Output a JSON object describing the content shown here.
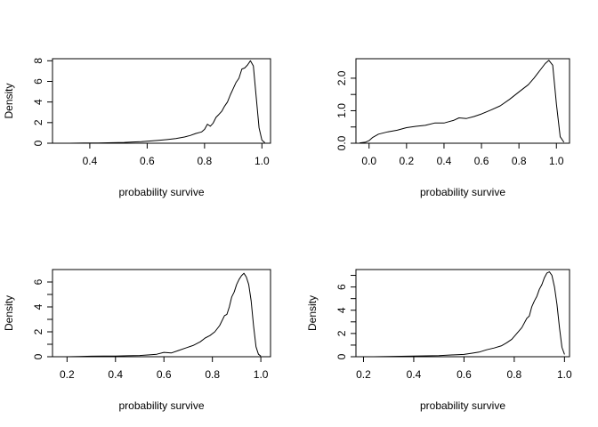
{
  "chart_data": [
    {
      "type": "line",
      "title": "",
      "xlabel": "probability survive",
      "ylabel": "Density",
      "xlim": [
        0.27,
        1.03
      ],
      "ylim": [
        0,
        8.2
      ],
      "xticks": [
        0.4,
        0.6,
        0.8,
        1.0
      ],
      "xtick_labels": [
        "0.4",
        "0.6",
        "0.8",
        "1.0"
      ],
      "yticks": [
        0,
        2,
        4,
        6,
        8
      ],
      "ytick_labels": [
        "0",
        "2",
        "4",
        "6",
        "8"
      ],
      "grid": false,
      "series": [
        {
          "x": [
            0.28,
            0.33,
            0.38,
            0.43,
            0.48,
            0.52,
            0.55,
            0.58,
            0.61,
            0.64,
            0.67,
            0.7,
            0.73,
            0.75,
            0.77,
            0.79,
            0.8,
            0.81,
            0.82,
            0.83,
            0.84,
            0.85,
            0.86,
            0.87,
            0.88,
            0.89,
            0.9,
            0.91,
            0.92,
            0.93,
            0.94,
            0.95,
            0.96,
            0.97,
            0.98,
            0.99,
            1.0,
            1.01
          ],
          "y": [
            0,
            0,
            0.02,
            0.03,
            0.05,
            0.08,
            0.12,
            0.15,
            0.22,
            0.28,
            0.35,
            0.45,
            0.6,
            0.75,
            0.95,
            1.1,
            1.35,
            1.85,
            1.65,
            1.95,
            2.5,
            2.8,
            3.1,
            3.6,
            4.0,
            4.7,
            5.3,
            5.9,
            6.3,
            7.2,
            7.3,
            7.6,
            8.0,
            7.5,
            4.5,
            1.5,
            0.3,
            0.05
          ]
        }
      ]
    },
    {
      "type": "line",
      "title": "",
      "xlabel": "probability survive",
      "ylabel": "",
      "xlim": [
        -0.07,
        1.07
      ],
      "ylim": [
        0,
        2.6
      ],
      "xticks": [
        0.0,
        0.2,
        0.4,
        0.6,
        0.8,
        1.0
      ],
      "xtick_labels": [
        "0.0",
        "0.2",
        "0.4",
        "0.6",
        "0.8",
        "1.0"
      ],
      "yticks": [
        0.0,
        0.5,
        1.0,
        1.5,
        2.0
      ],
      "ytick_labels": [
        "0.0",
        "",
        "1.0",
        "",
        "2.0"
      ],
      "grid": false,
      "series": [
        {
          "x": [
            -0.05,
            -0.02,
            0.0,
            0.02,
            0.05,
            0.1,
            0.15,
            0.2,
            0.25,
            0.3,
            0.35,
            0.4,
            0.45,
            0.48,
            0.52,
            0.56,
            0.6,
            0.65,
            0.7,
            0.75,
            0.8,
            0.85,
            0.88,
            0.9,
            0.92,
            0.94,
            0.96,
            0.98,
            1.0,
            1.02,
            1.04
          ],
          "y": [
            0.01,
            0.03,
            0.08,
            0.18,
            0.28,
            0.35,
            0.4,
            0.48,
            0.52,
            0.55,
            0.62,
            0.62,
            0.7,
            0.78,
            0.76,
            0.82,
            0.9,
            1.02,
            1.15,
            1.35,
            1.58,
            1.8,
            2.0,
            2.15,
            2.3,
            2.45,
            2.55,
            2.4,
            1.2,
            0.2,
            0.03
          ]
        }
      ]
    },
    {
      "type": "line",
      "title": "",
      "xlabel": "probability survive",
      "ylabel": "Density",
      "xlim": [
        0.14,
        1.04
      ],
      "ylim": [
        0,
        7
      ],
      "xticks": [
        0.2,
        0.4,
        0.6,
        0.8,
        1.0
      ],
      "xtick_labels": [
        "0.2",
        "0.4",
        "0.6",
        "0.8",
        "1.0"
      ],
      "yticks": [
        0,
        1,
        2,
        3,
        4,
        5,
        6
      ],
      "ytick_labels": [
        "0",
        "",
        "2",
        "",
        "4",
        "",
        "6"
      ],
      "grid": false,
      "series": [
        {
          "x": [
            0.15,
            0.2,
            0.25,
            0.3,
            0.35,
            0.4,
            0.45,
            0.5,
            0.54,
            0.57,
            0.6,
            0.63,
            0.66,
            0.69,
            0.72,
            0.75,
            0.77,
            0.79,
            0.81,
            0.83,
            0.85,
            0.86,
            0.87,
            0.88,
            0.89,
            0.9,
            0.91,
            0.92,
            0.93,
            0.94,
            0.95,
            0.96,
            0.97,
            0.98,
            0.99,
            1.0
          ],
          "y": [
            0,
            0,
            0.02,
            0.04,
            0.05,
            0.06,
            0.08,
            0.1,
            0.15,
            0.2,
            0.35,
            0.3,
            0.5,
            0.7,
            0.9,
            1.2,
            1.5,
            1.7,
            2.0,
            2.5,
            3.3,
            3.4,
            4.0,
            4.8,
            5.2,
            5.8,
            6.2,
            6.5,
            6.7,
            6.4,
            5.8,
            4.5,
            2.5,
            0.8,
            0.2,
            0.05
          ]
        }
      ]
    },
    {
      "type": "line",
      "title": "",
      "xlabel": "probability survive",
      "ylabel": "Density",
      "xlim": [
        0.17,
        1.02
      ],
      "ylim": [
        0,
        7.5
      ],
      "xticks": [
        0.2,
        0.4,
        0.6,
        0.8,
        1.0
      ],
      "xtick_labels": [
        "0.2",
        "0.4",
        "0.6",
        "0.8",
        "1.0"
      ],
      "yticks": [
        0,
        1,
        2,
        3,
        4,
        5,
        6,
        7
      ],
      "ytick_labels": [
        "0",
        "",
        "2",
        "",
        "4",
        "",
        "6",
        ""
      ],
      "grid": false,
      "series": [
        {
          "x": [
            0.19,
            0.24,
            0.3,
            0.35,
            0.4,
            0.45,
            0.5,
            0.55,
            0.6,
            0.63,
            0.66,
            0.69,
            0.72,
            0.75,
            0.77,
            0.79,
            0.81,
            0.83,
            0.85,
            0.86,
            0.87,
            0.88,
            0.89,
            0.9,
            0.91,
            0.92,
            0.93,
            0.94,
            0.95,
            0.96,
            0.97,
            0.98,
            0.99,
            1.0
          ],
          "y": [
            0,
            0,
            0.02,
            0.04,
            0.06,
            0.08,
            0.1,
            0.15,
            0.2,
            0.3,
            0.4,
            0.6,
            0.75,
            0.95,
            1.2,
            1.5,
            2.0,
            2.5,
            3.3,
            3.5,
            4.3,
            4.8,
            5.2,
            5.8,
            6.2,
            6.8,
            7.2,
            7.3,
            7.0,
            6.0,
            4.5,
            2.5,
            0.8,
            0.2
          ]
        }
      ]
    }
  ]
}
